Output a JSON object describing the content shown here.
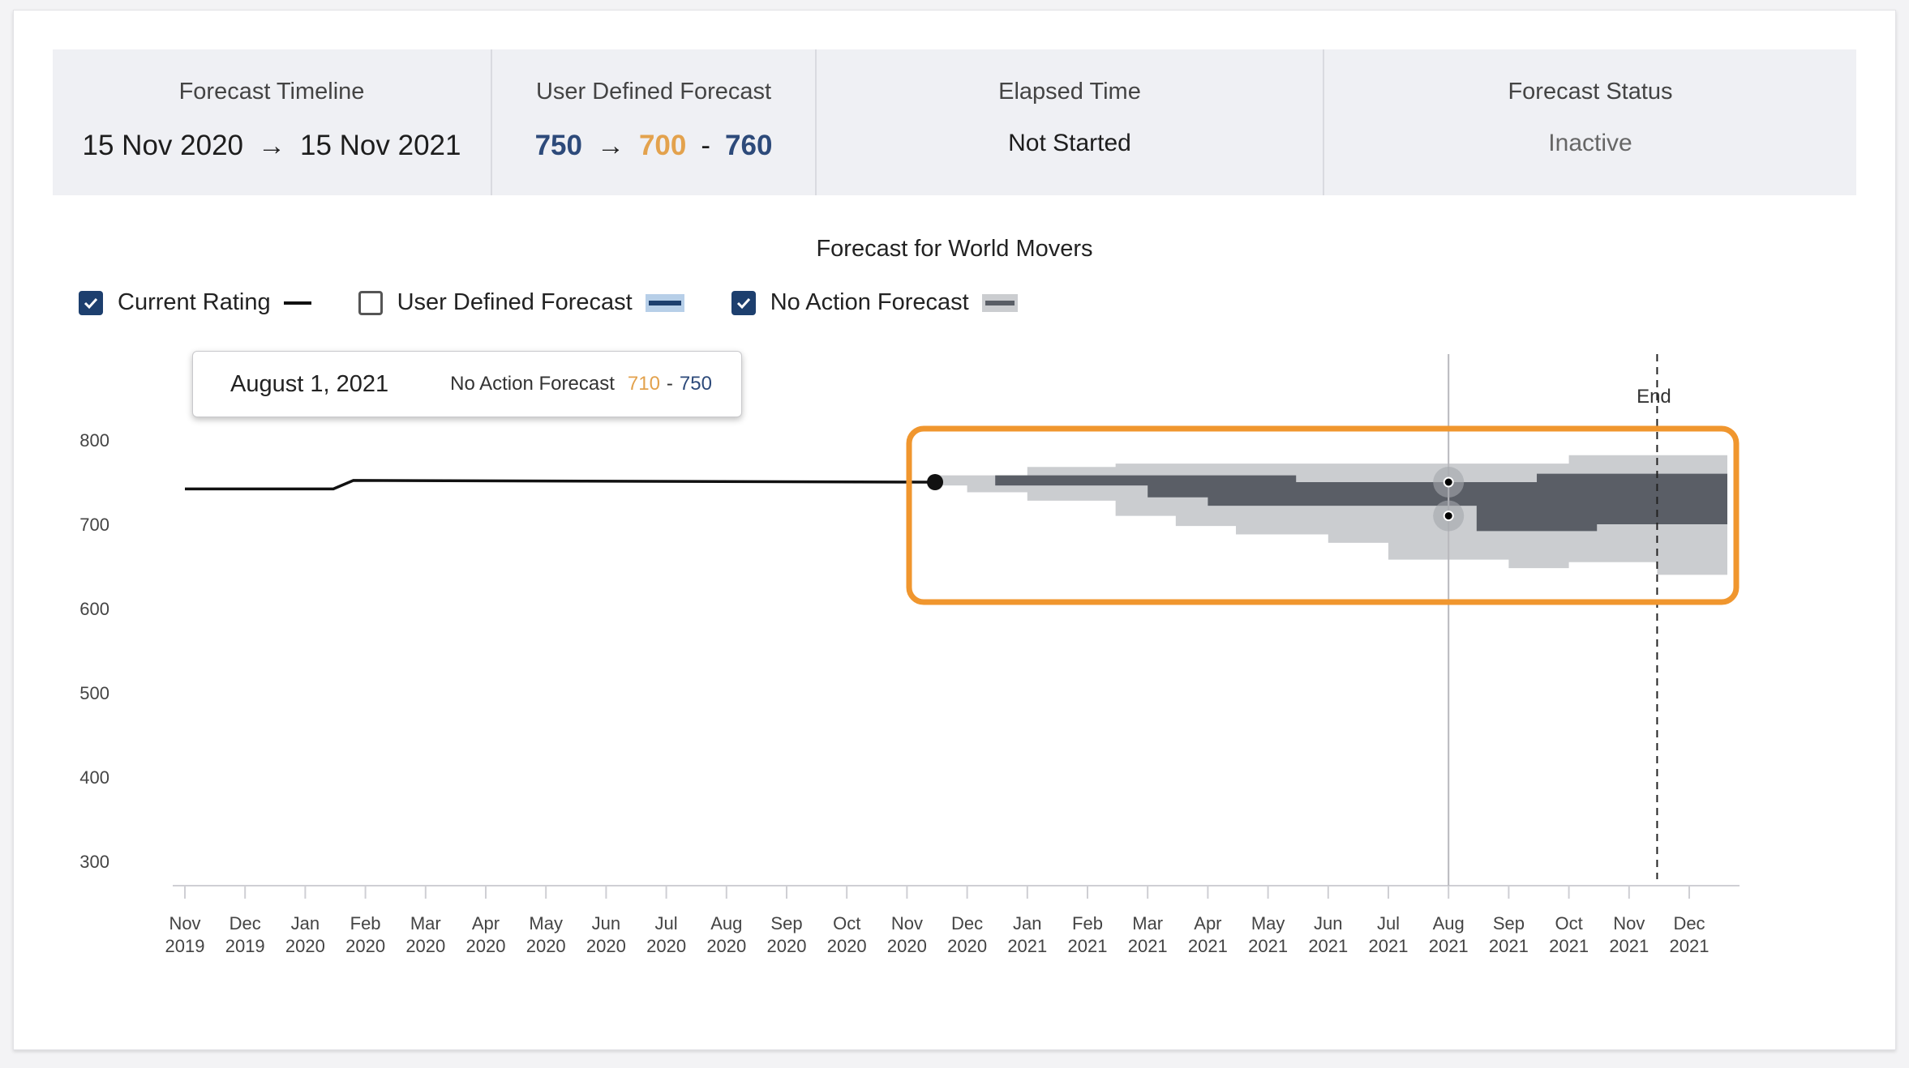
{
  "summary": {
    "timeline": {
      "label": "Forecast Timeline",
      "start": "15 Nov 2020",
      "end": "15 Nov 2021"
    },
    "user_forecast": {
      "label": "User Defined Forecast",
      "current": "750",
      "low": "700",
      "separator": "-",
      "high": "760"
    },
    "elapsed": {
      "label": "Elapsed Time",
      "value": "Not Started"
    },
    "status": {
      "label": "Forecast Status",
      "value": "Inactive"
    }
  },
  "legend": {
    "current_rating": {
      "label": "Current Rating",
      "checked": true
    },
    "user_defined": {
      "label": "User Defined Forecast",
      "checked": false
    },
    "no_action": {
      "label": "No Action Forecast",
      "checked": true
    }
  },
  "tooltip": {
    "date": "August 1, 2021",
    "series": "No Action Forecast",
    "low": "710",
    "separator": "-",
    "high": "750"
  },
  "colors": {
    "blue": "#2d4a7a",
    "orange": "#e3a24d",
    "band_inner": "#5a5e66",
    "band_outer": "#cbcdd0",
    "highlight": "#f0962e",
    "user_swatch": "#1d3f6e",
    "user_swatch_bg": "#b7cfe8"
  },
  "chart_data": {
    "type": "line",
    "title": "Forecast for World Movers",
    "ylim": [
      300,
      800
    ],
    "yticks": [
      800,
      700,
      600,
      500,
      400,
      300
    ],
    "x_start": "2019-11",
    "x_ticks": [
      [
        "Nov",
        "2019"
      ],
      [
        "Dec",
        "2019"
      ],
      [
        "Jan",
        "2020"
      ],
      [
        "Feb",
        "2020"
      ],
      [
        "Mar",
        "2020"
      ],
      [
        "Apr",
        "2020"
      ],
      [
        "May",
        "2020"
      ],
      [
        "Jun",
        "2020"
      ],
      [
        "Jul",
        "2020"
      ],
      [
        "Aug",
        "2020"
      ],
      [
        "Sep",
        "2020"
      ],
      [
        "Oct",
        "2020"
      ],
      [
        "Nov",
        "2020"
      ],
      [
        "Dec",
        "2020"
      ],
      [
        "Jan",
        "2021"
      ],
      [
        "Feb",
        "2021"
      ],
      [
        "Mar",
        "2021"
      ],
      [
        "Apr",
        "2021"
      ],
      [
        "May",
        "2021"
      ],
      [
        "Jun",
        "2021"
      ],
      [
        "Jul",
        "2021"
      ],
      [
        "Aug",
        "2021"
      ],
      [
        "Sep",
        "2021"
      ],
      [
        "Oct",
        "2021"
      ],
      [
        "Nov",
        "2021"
      ],
      [
        "Dec",
        "2021"
      ]
    ],
    "current_rating": [
      {
        "x": "2019-11-01",
        "y": 742
      },
      {
        "x": "2020-01-15",
        "y": 742
      },
      {
        "x": "2020-01-25",
        "y": 752
      },
      {
        "x": "2020-11-15",
        "y": 750
      }
    ],
    "current_point": {
      "x": "2020-11-15",
      "y": 750
    },
    "no_action_inner": [
      {
        "x": "2020-11-15",
        "lo": 750,
        "hi": 750
      },
      {
        "x": "2020-12-15",
        "lo": 746,
        "hi": 758
      },
      {
        "x": "2021-03-01",
        "lo": 732,
        "hi": 758
      },
      {
        "x": "2021-04-01",
        "lo": 722,
        "hi": 758
      },
      {
        "x": "2021-05-15",
        "lo": 722,
        "hi": 750
      },
      {
        "x": "2021-08-15",
        "lo": 692,
        "hi": 750
      },
      {
        "x": "2021-09-15",
        "lo": 692,
        "hi": 760
      },
      {
        "x": "2021-10-15",
        "lo": 700,
        "hi": 760
      },
      {
        "x": "2021-12-20",
        "lo": 700,
        "hi": 760
      }
    ],
    "no_action_outer": [
      {
        "x": "2020-11-15",
        "lo": 746,
        "hi": 758
      },
      {
        "x": "2020-12-01",
        "lo": 738,
        "hi": 758
      },
      {
        "x": "2021-01-01",
        "lo": 728,
        "hi": 768
      },
      {
        "x": "2021-02-15",
        "lo": 710,
        "hi": 772
      },
      {
        "x": "2021-03-15",
        "lo": 698,
        "hi": 772
      },
      {
        "x": "2021-04-15",
        "lo": 688,
        "hi": 772
      },
      {
        "x": "2021-06-01",
        "lo": 678,
        "hi": 772
      },
      {
        "x": "2021-07-01",
        "lo": 658,
        "hi": 772
      },
      {
        "x": "2021-09-01",
        "lo": 648,
        "hi": 772
      },
      {
        "x": "2021-10-01",
        "lo": 655,
        "hi": 782
      },
      {
        "x": "2021-11-15",
        "lo": 640,
        "hi": 782
      },
      {
        "x": "2021-12-20",
        "lo": 640,
        "hi": 782
      }
    ],
    "hover_date": "2021-08-01",
    "hover_points": [
      750,
      710
    ],
    "end_marker": {
      "x": "2021-11-15",
      "label": "End"
    }
  }
}
